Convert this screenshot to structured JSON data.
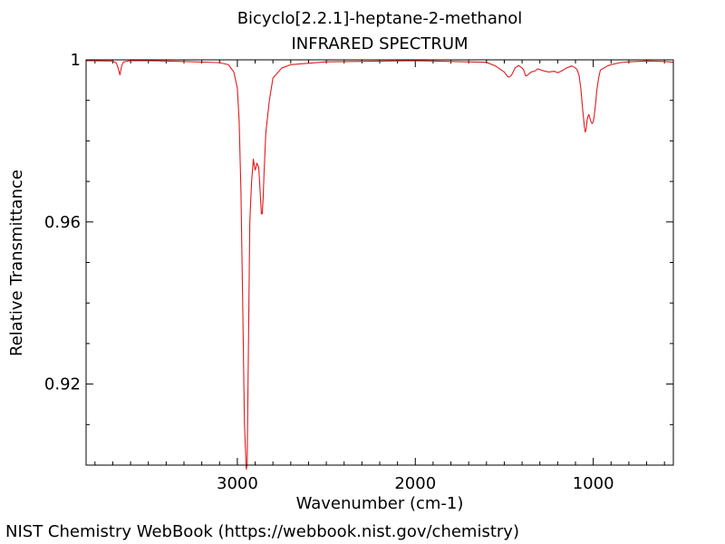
{
  "chart_data": {
    "type": "line",
    "title": "Bicyclo[2.2.1]-heptane-2-methanol",
    "subtitle": "INFRARED SPECTRUM",
    "xlabel": "Wavenumber (cm-1)",
    "ylabel": "Relative Transmittance",
    "xlim": [
      3850,
      550
    ],
    "ylim": [
      0.9,
      1.0
    ],
    "x_reversed": true,
    "x_ticks": [
      3000,
      2000,
      1000
    ],
    "x_tick_labels": [
      "3000",
      "2000",
      "1000"
    ],
    "y_ticks": [
      0.92,
      0.96,
      1.0
    ],
    "y_tick_labels": [
      "0.92",
      "0.96",
      "1"
    ],
    "grid": false,
    "series": [
      {
        "color": "#e31a1c",
        "x": [
          3850,
          3700,
          3680,
          3670,
          3660,
          3650,
          3640,
          3600,
          3500,
          3300,
          3100,
          3050,
          3020,
          3000,
          2990,
          2980,
          2970,
          2960,
          2950,
          2945,
          2940,
          2935,
          2930,
          2920,
          2910,
          2905,
          2900,
          2895,
          2890,
          2885,
          2880,
          2875,
          2870,
          2865,
          2860,
          2855,
          2850,
          2840,
          2820,
          2800,
          2750,
          2700,
          2500,
          2000,
          1600,
          1550,
          1500,
          1480,
          1470,
          1460,
          1450,
          1440,
          1420,
          1400,
          1390,
          1380,
          1370,
          1350,
          1330,
          1310,
          1300,
          1280,
          1250,
          1220,
          1200,
          1180,
          1150,
          1120,
          1100,
          1090,
          1080,
          1070,
          1060,
          1050,
          1045,
          1040,
          1035,
          1030,
          1025,
          1020,
          1015,
          1010,
          1005,
          1000,
          995,
          990,
          985,
          980,
          970,
          960,
          940,
          920,
          900,
          880,
          850,
          800,
          700,
          600,
          550
        ],
        "y": [
          0.9998,
          0.9997,
          0.9992,
          0.998,
          0.9963,
          0.9985,
          0.9995,
          0.9998,
          0.9998,
          0.9996,
          0.9993,
          0.9988,
          0.997,
          0.993,
          0.985,
          0.968,
          0.94,
          0.91,
          0.899,
          0.9,
          0.92,
          0.94,
          0.96,
          0.97,
          0.9755,
          0.974,
          0.9728,
          0.9735,
          0.9745,
          0.974,
          0.9735,
          0.97,
          0.966,
          0.962,
          0.962,
          0.966,
          0.972,
          0.982,
          0.99,
          0.9955,
          0.998,
          0.9988,
          0.9995,
          0.9998,
          0.9994,
          0.9985,
          0.997,
          0.9958,
          0.9958,
          0.9962,
          0.997,
          0.998,
          0.9986,
          0.998,
          0.9974,
          0.996,
          0.9962,
          0.997,
          0.9972,
          0.9978,
          0.9976,
          0.9973,
          0.997,
          0.9972,
          0.9968,
          0.9972,
          0.998,
          0.9985,
          0.998,
          0.9975,
          0.9962,
          0.993,
          0.988,
          0.9835,
          0.9822,
          0.9828,
          0.985,
          0.986,
          0.9865,
          0.9858,
          0.985,
          0.9845,
          0.9843,
          0.9848,
          0.986,
          0.988,
          0.99,
          0.9925,
          0.9955,
          0.9975,
          0.998,
          0.9985,
          0.9988,
          0.999,
          0.9993,
          0.9995,
          0.9997,
          0.9996,
          0.9994
        ]
      }
    ]
  },
  "footer": {
    "credit": "NIST Chemistry WebBook (https://webbook.nist.gov/chemistry)"
  }
}
